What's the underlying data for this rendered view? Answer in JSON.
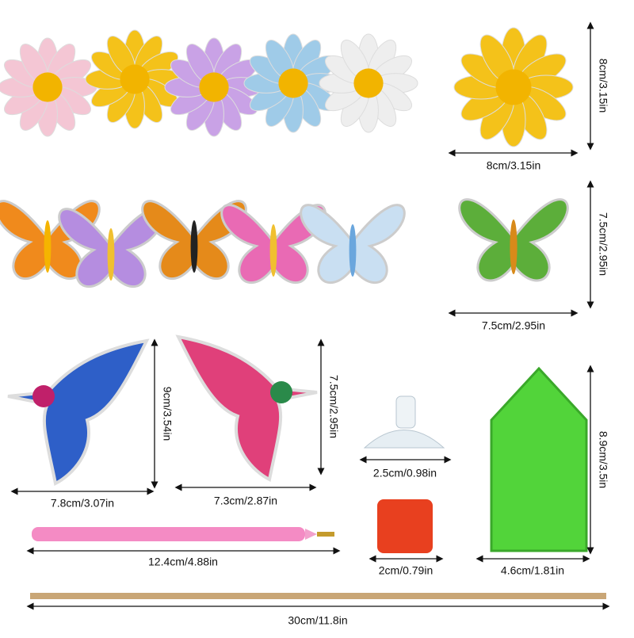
{
  "dimensions": [
    "8cm/3.15in",
    "8cm/3.15in",
    "7.5cm/2.95in",
    "7.5cm/2.95in",
    "9cm/3.54in",
    "7.8cm/3.07in",
    "7.5cm/2.95in",
    "7.3cm/2.87in",
    "2.5cm/0.98in",
    "8.9cm/3.5in",
    "12.4cm/4.88in",
    "2cm/0.79in",
    "4.6cm/1.81in",
    "30cm/11.8in"
  ]
}
